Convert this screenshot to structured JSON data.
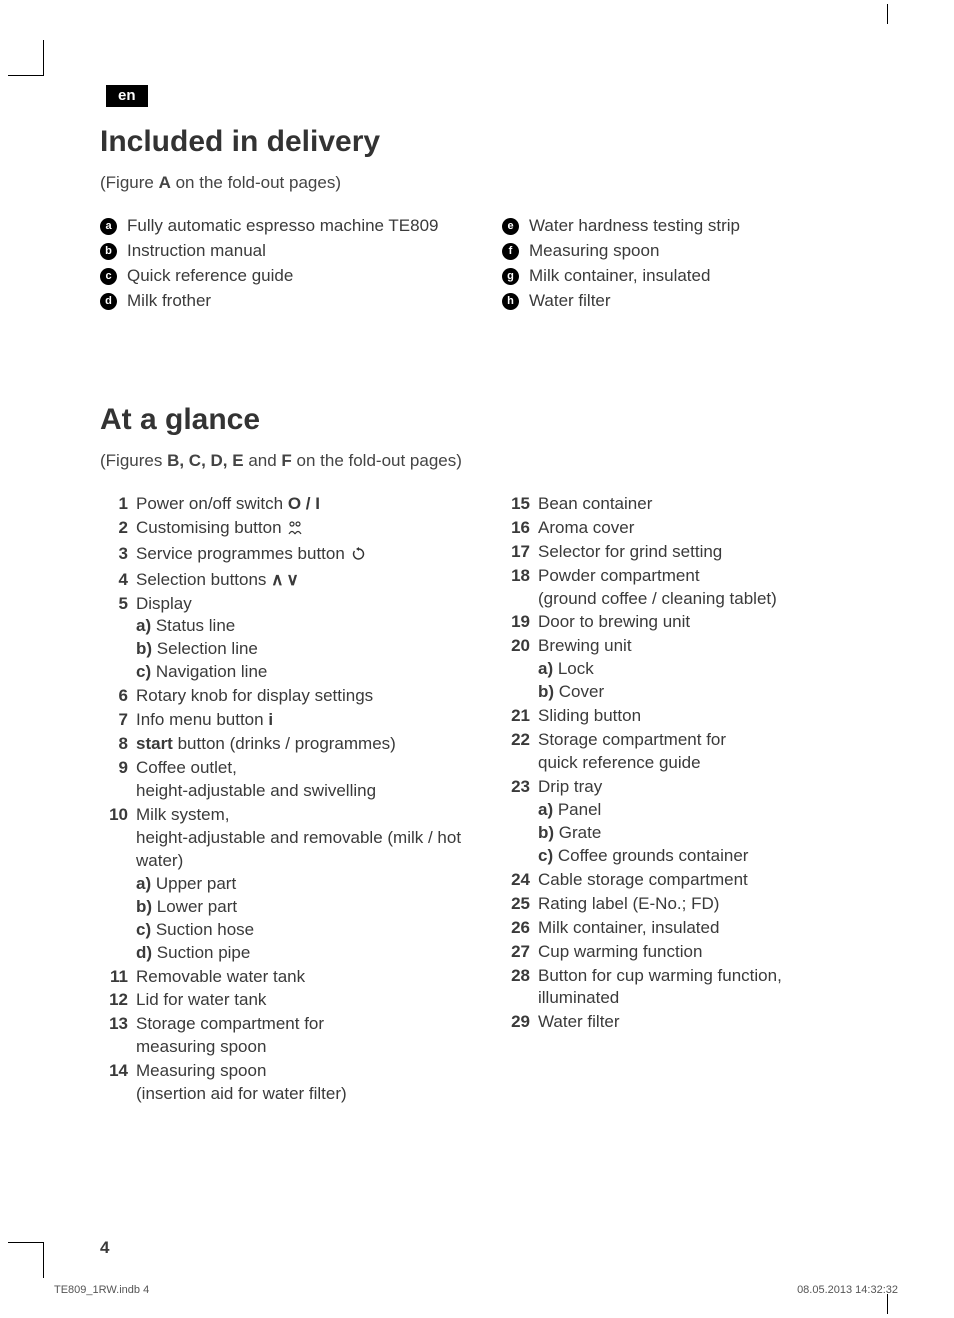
{
  "lang_badge": "en",
  "section1": {
    "heading": "Included in delivery",
    "figref_pre": "(Figure ",
    "figref_bold": "A",
    "figref_post": " on the fold-out pages)",
    "left": [
      {
        "letter": "a",
        "text": "Fully automatic espresso machine TE809"
      },
      {
        "letter": "b",
        "text": "Instruction manual"
      },
      {
        "letter": "c",
        "text": "Quick reference guide"
      },
      {
        "letter": "d",
        "text": "Milk frother"
      }
    ],
    "right": [
      {
        "letter": "e",
        "text": "Water hardness testing strip"
      },
      {
        "letter": "f",
        "text": "Measuring spoon"
      },
      {
        "letter": "g",
        "text": "Milk container, insulated"
      },
      {
        "letter": "h",
        "text": "Water filter"
      }
    ]
  },
  "section2": {
    "heading": "At a glance",
    "figref_pre": "(Figures ",
    "figref_bold1": "B, C, D, E",
    "figref_mid": " and ",
    "figref_bold2": "F",
    "figref_post": " on the fold-out pages)",
    "left": [
      {
        "n": "1",
        "html": "Power on/off switch <b>O / I</b>"
      },
      {
        "n": "2",
        "html": "Customising button <span class='icon-inline'>à¹</span>",
        "icon": "customise"
      },
      {
        "n": "3",
        "html": "Service programmes button <span class='icon-inline'>↻</span>",
        "icon": "service"
      },
      {
        "n": "4",
        "html": "Selection buttons <span class='icon-updown'>∧ ∨</span>"
      },
      {
        "n": "5",
        "html": "Display",
        "subs": [
          {
            "l": "a)",
            "t": "Status line"
          },
          {
            "l": "b)",
            "t": "Selection line"
          },
          {
            "l": "c)",
            "t": "Navigation line"
          }
        ]
      },
      {
        "n": "6",
        "html": "Rotary knob for display settings"
      },
      {
        "n": "7",
        "html": "Info menu button <b>i</b>"
      },
      {
        "n": "8",
        "html": "<b>start</b> button (drinks / programmes)"
      },
      {
        "n": "9",
        "html": "Coffee outlet,",
        "cont": "height-adjustable and swivelling"
      },
      {
        "n": "10",
        "html": "Milk system,",
        "cont": "height-adjustable and removable (milk / hot water)",
        "subs": [
          {
            "l": "a)",
            "t": "Upper part"
          },
          {
            "l": "b)",
            "t": "Lower part"
          },
          {
            "l": "c)",
            "t": "Suction hose"
          },
          {
            "l": "d)",
            "t": "Suction pipe"
          }
        ]
      },
      {
        "n": "11",
        "html": "Removable water tank"
      },
      {
        "n": "12",
        "html": "Lid for water tank"
      },
      {
        "n": "13",
        "html": "Storage compartment for",
        "cont": "measuring spoon"
      },
      {
        "n": "14",
        "html": "Measuring spoon",
        "cont": "(insertion aid for water filter)"
      }
    ],
    "right": [
      {
        "n": "15",
        "html": "Bean container"
      },
      {
        "n": "16",
        "html": "Aroma cover"
      },
      {
        "n": "17",
        "html": "Selector for grind setting"
      },
      {
        "n": "18",
        "html": "Powder compartment",
        "cont": "(ground coffee / cleaning tablet)"
      },
      {
        "n": "19",
        "html": "Door to brewing unit"
      },
      {
        "n": "20",
        "html": "Brewing unit",
        "subs": [
          {
            "l": "a)",
            "t": "Lock"
          },
          {
            "l": "b)",
            "t": "Cover"
          }
        ]
      },
      {
        "n": "21",
        "html": "Sliding button"
      },
      {
        "n": "22",
        "html": "Storage compartment for",
        "cont": "quick reference guide"
      },
      {
        "n": "23",
        "html": "Drip tray",
        "subs": [
          {
            "l": "a)",
            "t": "Panel"
          },
          {
            "l": "b)",
            "t": "Grate"
          },
          {
            "l": "c)",
            "t": "Coffee grounds container"
          }
        ]
      },
      {
        "n": "24",
        "html": "Cable storage compartment"
      },
      {
        "n": "25",
        "html": "Rating label (E-No.; FD)"
      },
      {
        "n": "26",
        "html": "Milk container, insulated"
      },
      {
        "n": "27",
        "html": "Cup warming function"
      },
      {
        "n": "28",
        "html": "Button for cup warming function,",
        "cont": "illuminated"
      },
      {
        "n": "29",
        "html": "Water filter"
      }
    ]
  },
  "page_number": "4",
  "footer_left": "TE809_1RW.indb   4",
  "footer_right": "08.05.2013   14:32:32"
}
